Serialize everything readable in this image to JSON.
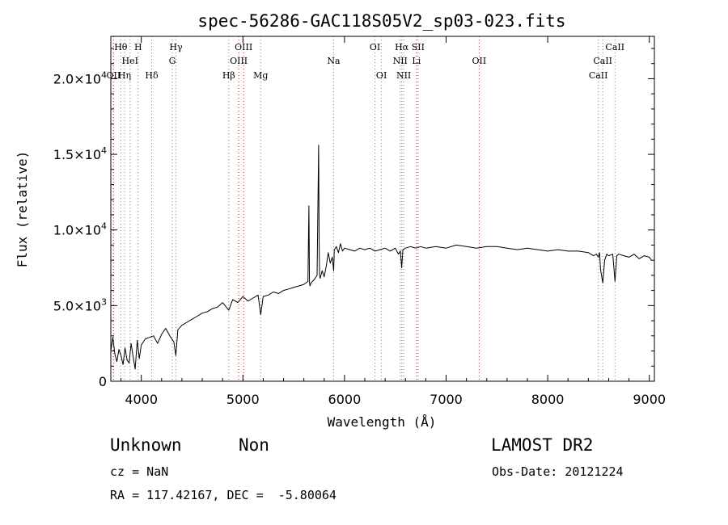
{
  "chart_data": {
    "type": "line",
    "title": "spec-56286-GAC118S05V2_sp03-023.fits",
    "xlabel": "Wavelength (Å)",
    "ylabel": "Flux (relative)",
    "xlim": [
      3700,
      9050
    ],
    "ylim": [
      0,
      22800
    ],
    "xticks": [
      {
        "value": 4000,
        "label": "4000"
      },
      {
        "value": 5000,
        "label": "5000"
      },
      {
        "value": 6000,
        "label": "6000"
      },
      {
        "value": 7000,
        "label": "7000"
      },
      {
        "value": 8000,
        "label": "8000"
      },
      {
        "value": 9000,
        "label": "9000"
      }
    ],
    "yticks": [
      {
        "value": 0,
        "mant": "0",
        "exp": ""
      },
      {
        "value": 5000,
        "mant": "5.0×10",
        "exp": "3"
      },
      {
        "value": 10000,
        "mant": "1.0×10",
        "exp": "4"
      },
      {
        "value": 15000,
        "mant": "1.5×10",
        "exp": "4"
      },
      {
        "value": 20000,
        "mant": "2.0×10",
        "exp": "4"
      }
    ],
    "spectrum": {
      "x": [
        3700,
        3720,
        3740,
        3760,
        3780,
        3800,
        3820,
        3840,
        3860,
        3880,
        3900,
        3920,
        3940,
        3960,
        3980,
        4000,
        4040,
        4080,
        4120,
        4160,
        4200,
        4240,
        4280,
        4320,
        4340,
        4360,
        4400,
        4450,
        4500,
        4550,
        4600,
        4650,
        4700,
        4750,
        4800,
        4861,
        4900,
        4950,
        5000,
        5050,
        5100,
        5150,
        5175,
        5200,
        5250,
        5300,
        5350,
        5400,
        5450,
        5500,
        5550,
        5600,
        5640,
        5650,
        5655,
        5660,
        5665,
        5670,
        5700,
        5730,
        5745,
        5750,
        5755,
        5760,
        5780,
        5800,
        5820,
        5840,
        5860,
        5880,
        5893,
        5900,
        5920,
        5940,
        5960,
        5980,
        6000,
        6050,
        6100,
        6150,
        6200,
        6250,
        6300,
        6350,
        6400,
        6450,
        6500,
        6530,
        6550,
        6563,
        6575,
        6600,
        6650,
        6700,
        6750,
        6800,
        6900,
        7000,
        7100,
        7200,
        7300,
        7400,
        7500,
        7600,
        7700,
        7800,
        7900,
        8000,
        8100,
        8200,
        8300,
        8400,
        8450,
        8480,
        8498,
        8510,
        8520,
        8542,
        8560,
        8580,
        8600,
        8640,
        8662,
        8680,
        8700,
        8750,
        8800,
        8850,
        8900,
        8950,
        9000,
        9020
      ],
      "y": [
        2000,
        2900,
        1800,
        1300,
        2100,
        1700,
        1100,
        2200,
        1400,
        1200,
        2500,
        1600,
        800,
        2700,
        1500,
        2400,
        2800,
        2900,
        3000,
        2500,
        3100,
        3500,
        3000,
        2600,
        1700,
        3400,
        3700,
        3900,
        4100,
        4300,
        4500,
        4600,
        4800,
        4900,
        5200,
        4700,
        5400,
        5200,
        5600,
        5300,
        5500,
        5700,
        4400,
        5600,
        5700,
        5900,
        5800,
        6000,
        6100,
        6200,
        6300,
        6400,
        6600,
        11600,
        6500,
        6300,
        6400,
        6500,
        6700,
        7000,
        15600,
        9400,
        7000,
        6800,
        7300,
        6900,
        7600,
        8500,
        7800,
        8200,
        7300,
        8700,
        8900,
        8500,
        9100,
        8600,
        8800,
        8700,
        8600,
        8800,
        8700,
        8800,
        8600,
        8700,
        8800,
        8600,
        8800,
        8400,
        8600,
        7500,
        8700,
        8800,
        8900,
        8800,
        8900,
        8800,
        8900,
        8800,
        9000,
        8900,
        8800,
        8900,
        8900,
        8800,
        8700,
        8800,
        8700,
        8600,
        8700,
        8600,
        8600,
        8500,
        8300,
        8400,
        8200,
        8500,
        7400,
        6500,
        8000,
        8400,
        8300,
        8400,
        6600,
        8300,
        8400,
        8300,
        8200,
        8400,
        8100,
        8300,
        8200,
        8000
      ]
    },
    "lines": [
      {
        "label": "Hθ",
        "x": 3798,
        "row": 0,
        "color": "#808080"
      },
      {
        "label": "H",
        "x": 3969,
        "row": 0,
        "color": "#808080"
      },
      {
        "label": "Hγ",
        "x": 4341,
        "row": 0,
        "color": "#808080"
      },
      {
        "label": "OIII",
        "x": 5007,
        "row": 0,
        "color": "#ff0000"
      },
      {
        "label": "OI",
        "x": 6300,
        "row": 0,
        "color": "#808080"
      },
      {
        "label": "Hα",
        "x": 6563,
        "row": 0,
        "color": "#808080"
      },
      {
        "label": "SII",
        "x": 6724,
        "row": 0,
        "color": "#808080"
      },
      {
        "label": "CaII",
        "x": 8662,
        "row": 0,
        "color": "#808080"
      },
      {
        "label": "HeI",
        "x": 3889,
        "row": 1,
        "color": "#808080"
      },
      {
        "label": "G",
        "x": 4305,
        "row": 1,
        "color": "#808080"
      },
      {
        "label": "OIII",
        "x": 4959,
        "row": 1,
        "color": "#ff0000"
      },
      {
        "label": "Na",
        "x": 5893,
        "row": 1,
        "color": "#808080"
      },
      {
        "label": "NII",
        "x": 6548,
        "row": 1,
        "color": "#808080"
      },
      {
        "label": "Li",
        "x": 6708,
        "row": 1,
        "color": "#ff0000"
      },
      {
        "label": "OII",
        "x": 7325,
        "row": 1,
        "color": "#ff0000"
      },
      {
        "label": "CaII",
        "x": 8542,
        "row": 1,
        "color": "#808080"
      },
      {
        "label": "OII",
        "x": 3727,
        "row": 2,
        "color": "#ff0000"
      },
      {
        "label": "Hη",
        "x": 3835,
        "row": 2,
        "color": "#808080"
      },
      {
        "label": "Hδ",
        "x": 4102,
        "row": 2,
        "color": "#808080"
      },
      {
        "label": "Hβ",
        "x": 4861,
        "row": 2,
        "color": "#808080"
      },
      {
        "label": "Mg",
        "x": 5175,
        "row": 2,
        "color": "#808080"
      },
      {
        "label": "OI",
        "x": 6364,
        "row": 2,
        "color": "#808080"
      },
      {
        "label": "NII",
        "x": 6583,
        "row": 2,
        "color": "#808080"
      },
      {
        "label": "CaII",
        "x": 8498,
        "row": 2,
        "color": "#808080"
      }
    ]
  },
  "info": {
    "class": "Unknown",
    "subclass": "Non",
    "survey": "LAMOST DR2",
    "cz": "cz = NaN",
    "obs_date": "Obs-Date: 20121224",
    "coords": "RA = 117.42167, DEC =  -5.80064"
  }
}
